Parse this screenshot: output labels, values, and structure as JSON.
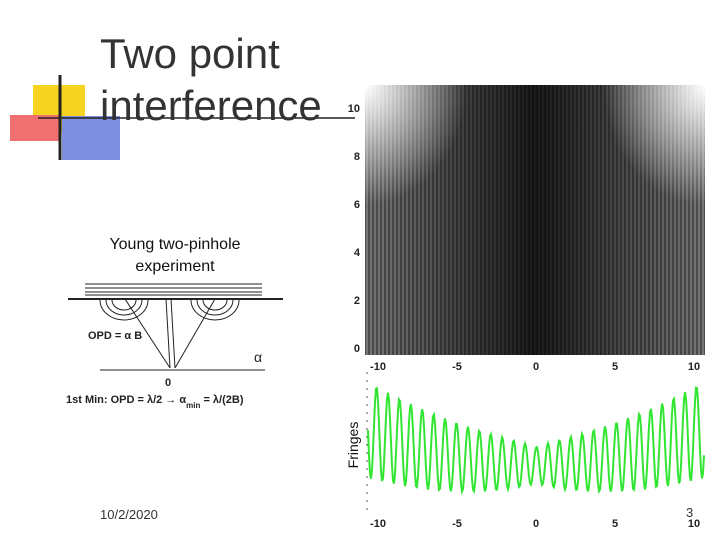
{
  "slide": {
    "title": "Two point interference",
    "caption": "Young two-pinhole experiment",
    "diagram": {
      "opd": "OPD = α B",
      "alpha": "α",
      "zero": "0",
      "min_main": "1st Min: OPD = λ/2 → α",
      "min_sub": "min",
      "min_end": " = λ/(2B)"
    },
    "plot": {
      "y_ticks": [
        "0",
        "2",
        "4",
        "6",
        "8",
        "10"
      ],
      "x_ticks": [
        "-10",
        "-5",
        "0",
        "5",
        "10"
      ],
      "lower_x_ticks": [
        "-10",
        "-5",
        "0",
        "5",
        "10"
      ],
      "lower_label": "Fringes"
    },
    "footer": {
      "date": "10/2/2020",
      "page": "3"
    }
  }
}
